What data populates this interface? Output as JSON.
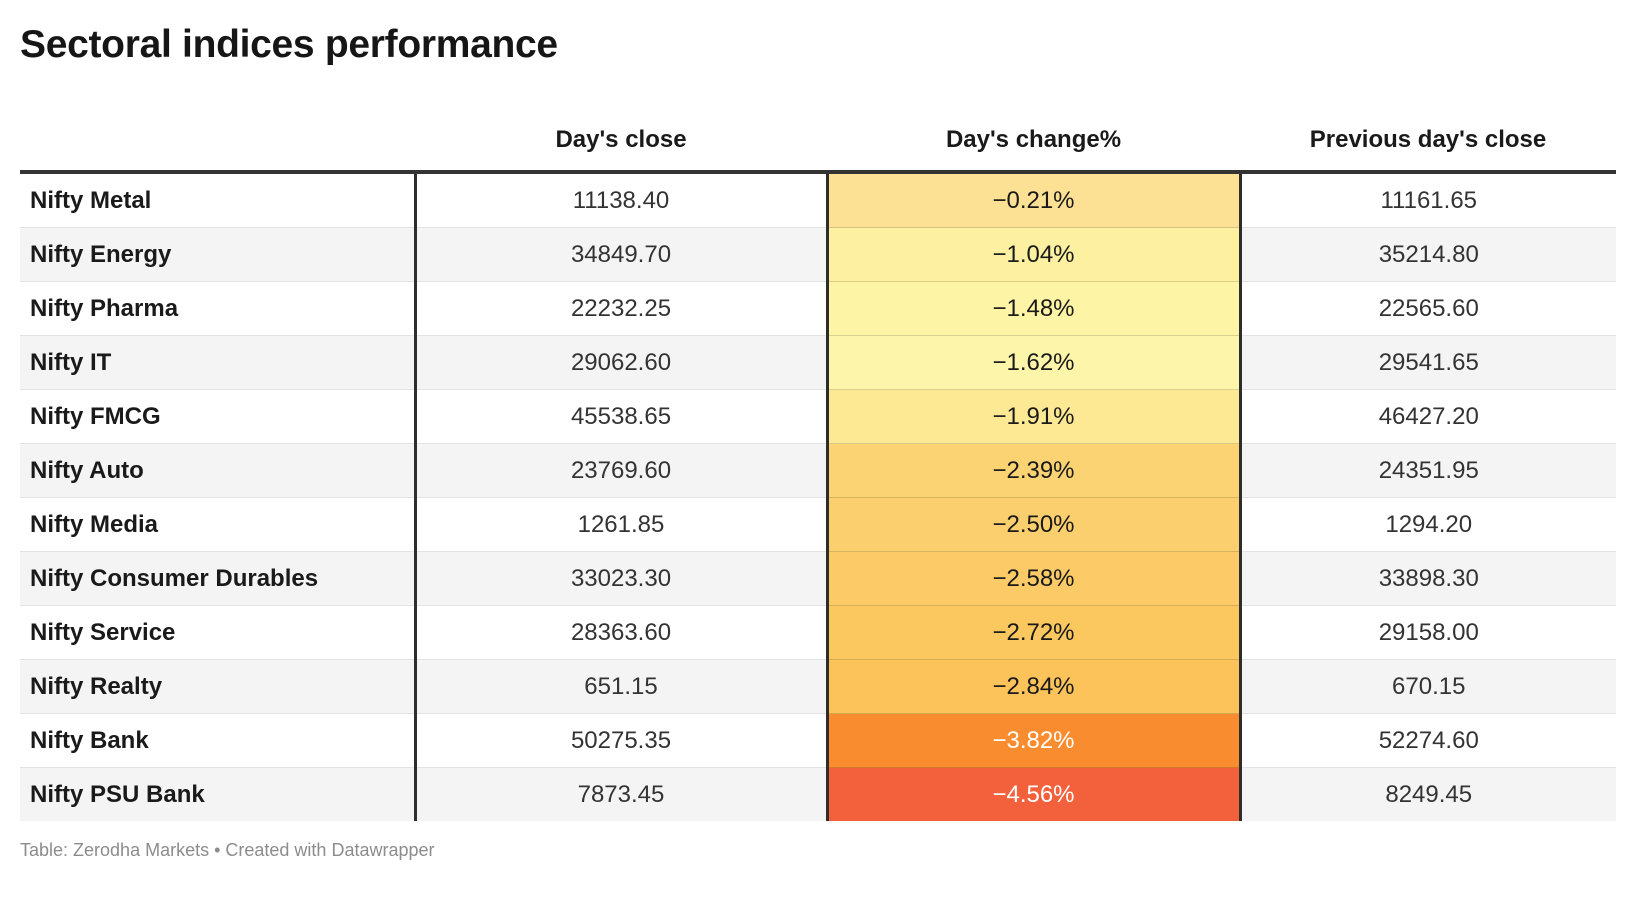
{
  "title": "Sectoral indices performance",
  "table": {
    "headers": {
      "label": "",
      "close": "Day's close",
      "change": "Day's change%",
      "prev": "Previous day's close"
    },
    "rows": [
      {
        "name": "Nifty Metal",
        "close": "11138.40",
        "change": "−0.21%",
        "prev": "11161.65",
        "change_bg": "#FCE093",
        "change_fg": "#1A1A1A"
      },
      {
        "name": "Nifty Energy",
        "close": "34849.70",
        "change": "−1.04%",
        "prev": "35214.80",
        "change_bg": "#FDF0A1",
        "change_fg": "#1A1A1A"
      },
      {
        "name": "Nifty Pharma",
        "close": "22232.25",
        "change": "−1.48%",
        "prev": "22565.60",
        "change_bg": "#FDF4A6",
        "change_fg": "#1A1A1A"
      },
      {
        "name": "Nifty IT",
        "close": "29062.60",
        "change": "−1.62%",
        "prev": "29541.65",
        "change_bg": "#FDF5A9",
        "change_fg": "#1A1A1A"
      },
      {
        "name": "Nifty FMCG",
        "close": "45538.65",
        "change": "−1.91%",
        "prev": "46427.20",
        "change_bg": "#FDE994",
        "change_fg": "#1A1A1A"
      },
      {
        "name": "Nifty Auto",
        "close": "23769.60",
        "change": "−2.39%",
        "prev": "24351.95",
        "change_bg": "#FCD373",
        "change_fg": "#1A1A1A"
      },
      {
        "name": "Nifty Media",
        "close": "1261.85",
        "change": "−2.50%",
        "prev": "1294.20",
        "change_bg": "#FCCF6E",
        "change_fg": "#1A1A1A"
      },
      {
        "name": "Nifty Consumer Durables",
        "close": "33023.30",
        "change": "−2.58%",
        "prev": "33898.30",
        "change_bg": "#FCCB67",
        "change_fg": "#1A1A1A"
      },
      {
        "name": "Nifty Service",
        "close": "28363.60",
        "change": "−2.72%",
        "prev": "29158.00",
        "change_bg": "#FBC75F",
        "change_fg": "#1A1A1A"
      },
      {
        "name": "Nifty Realty",
        "close": "651.15",
        "change": "−2.84%",
        "prev": "670.15",
        "change_bg": "#FBC35A",
        "change_fg": "#1A1A1A"
      },
      {
        "name": "Nifty Bank",
        "close": "50275.35",
        "change": "−3.82%",
        "prev": "52274.60",
        "change_bg": "#F98C2E",
        "change_fg": "#FFFFFF"
      },
      {
        "name": "Nifty PSU Bank",
        "close": "7873.45",
        "change": "−4.56%",
        "prev": "8249.45",
        "change_bg": "#F2603C",
        "change_fg": "#FFFFFF"
      }
    ],
    "zebra_color": "#F4F4F4",
    "divider_color": "#2D2D2D",
    "header_rule_color": "#333333"
  },
  "footer": "Table: Zerodha Markets • Created with Datawrapper",
  "chart_data": {
    "type": "table",
    "title": "Sectoral indices performance",
    "categories": [
      "Nifty Metal",
      "Nifty Energy",
      "Nifty Pharma",
      "Nifty IT",
      "Nifty FMCG",
      "Nifty Auto",
      "Nifty Media",
      "Nifty Consumer Durables",
      "Nifty Service",
      "Nifty Realty",
      "Nifty Bank",
      "Nifty PSU Bank"
    ],
    "series": [
      {
        "name": "Day's close",
        "values": [
          11138.4,
          34849.7,
          22232.25,
          29062.6,
          45538.65,
          23769.6,
          1261.85,
          33023.3,
          28363.6,
          651.15,
          50275.35,
          7873.45
        ]
      },
      {
        "name": "Day's change%",
        "values": [
          -0.21,
          -1.04,
          -1.48,
          -1.62,
          -1.91,
          -2.39,
          -2.5,
          -2.58,
          -2.72,
          -2.84,
          -3.82,
          -4.56
        ]
      },
      {
        "name": "Previous day's close",
        "values": [
          11161.65,
          35214.8,
          22565.6,
          29541.65,
          46427.2,
          24351.95,
          1294.2,
          33898.3,
          29158.0,
          670.15,
          52274.6,
          8249.45
        ]
      }
    ],
    "layout_hints": {
      "heatmap_column": "Day's change%",
      "heatmap_palette": [
        "#FDF5A9",
        "#FDE994",
        "#FCD373",
        "#FBC35A",
        "#F98C2E",
        "#F2603C"
      ],
      "zebra_striping": true,
      "source_note": "Table: Zerodha Markets • Created with Datawrapper"
    }
  }
}
